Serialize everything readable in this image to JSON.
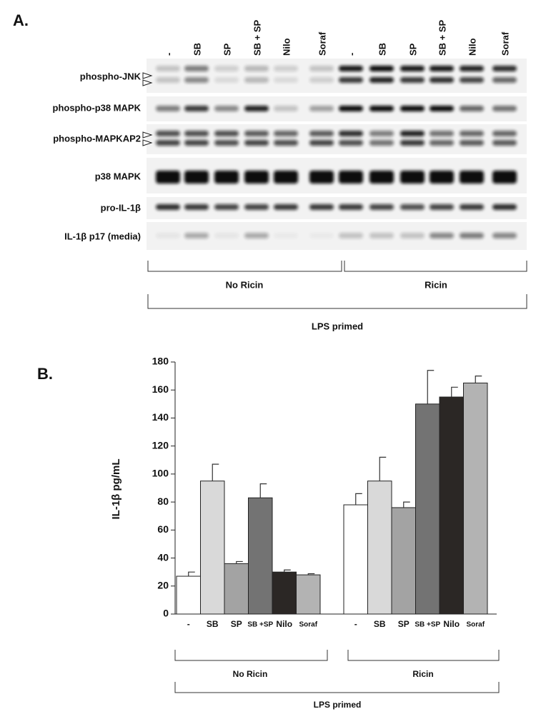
{
  "panel_a": {
    "label": "A.",
    "lanes": [
      "-",
      "SB",
      "SP",
      "SB + SP",
      "Nilo",
      "Soraf",
      "-",
      "SB",
      "SP",
      "SB + SP",
      "Nilo",
      "Soraf"
    ],
    "rows": [
      "phospho-JNK",
      "phospho-p38 MAPK",
      "phospho-MAPKAP2",
      "p38 MAPK",
      "pro-IL-1β",
      "IL-1β p17 (media)"
    ],
    "groups": [
      "No Ricin",
      "Ricin"
    ],
    "outer": "LPS primed"
  },
  "chart_data": {
    "type": "bar",
    "label": "B.",
    "ylabel": "IL-1β pg/mL",
    "categories": [
      "-",
      "SB",
      "SP",
      "SB +SP",
      "Nilo",
      "Soraf",
      "-",
      "SB",
      "SP",
      "SB +SP",
      "Nilo",
      "Soraf"
    ],
    "values": [
      27,
      95,
      36,
      83,
      30,
      28,
      78,
      95,
      76,
      150,
      155,
      165
    ],
    "errors": [
      3,
      12,
      1.5,
      10,
      1.5,
      0.8,
      8,
      17,
      4,
      24,
      7,
      5
    ],
    "colors": [
      "#ffffff",
      "#d9d9d9",
      "#a3a3a3",
      "#737373",
      "#2b2725",
      "#b3b3b3",
      "#ffffff",
      "#d9d9d9",
      "#a3a3a3",
      "#737373",
      "#2b2725",
      "#b3b3b3"
    ],
    "ylim": [
      0,
      180
    ],
    "yticks": [
      0,
      20,
      40,
      60,
      80,
      100,
      120,
      140,
      160,
      180
    ],
    "groups": [
      "No Ricin",
      "Ricin"
    ],
    "group_label": "LPS primed"
  }
}
